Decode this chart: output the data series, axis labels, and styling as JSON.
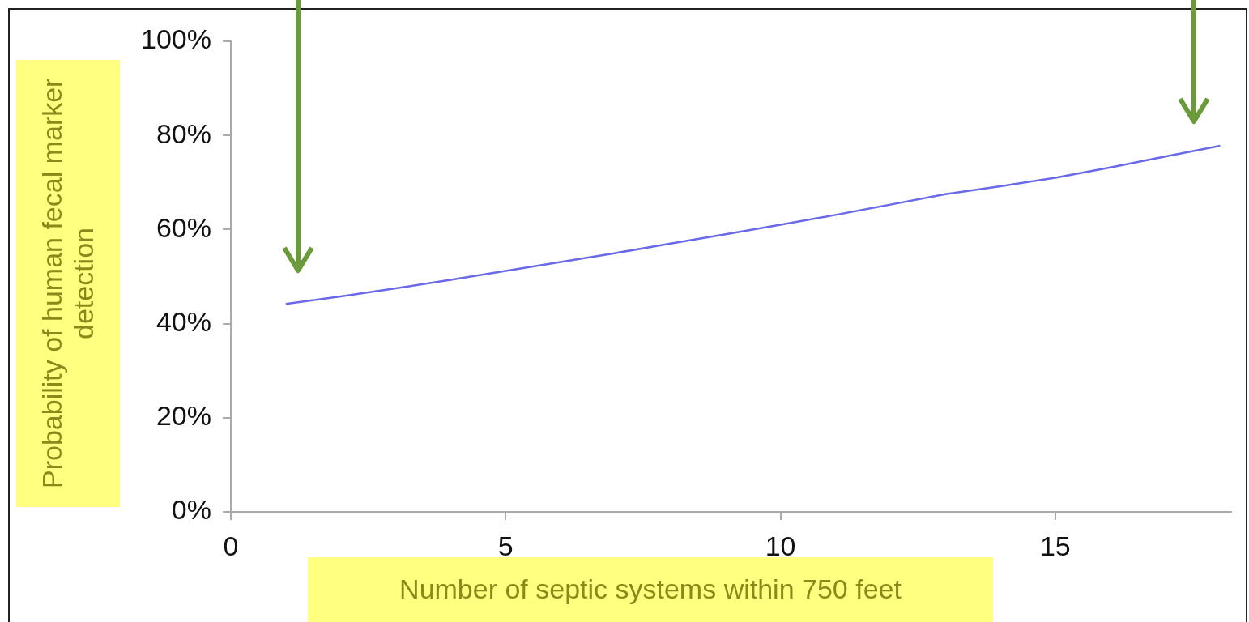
{
  "chart_data": {
    "type": "line",
    "xlabel": "Number of septic systems within 750 feet",
    "ylabel": "Probability of  human fecal marker detection",
    "x": [
      1,
      2,
      3,
      4,
      5,
      6,
      7,
      8,
      9,
      10,
      11,
      12,
      13,
      14,
      15,
      16,
      17,
      18
    ],
    "series": [
      {
        "color": "#6a6ae8",
        "values": [
          44.2,
          45.8,
          47.5,
          49.3,
          51.2,
          53.1,
          55,
          57,
          59,
          61,
          63.1,
          65.3,
          67.5,
          69.2,
          71,
          73.2,
          75.5,
          77.8
        ]
      }
    ],
    "xlim": [
      0,
      18.2
    ],
    "xticks": [
      0,
      5,
      10,
      15
    ],
    "ylim": [
      0,
      100
    ],
    "yticks": [
      {
        "value": 0,
        "label": "0%"
      },
      {
        "value": 20,
        "label": "20%"
      },
      {
        "value": 40,
        "label": "40%"
      },
      {
        "value": 60,
        "label": "60%"
      },
      {
        "value": 80,
        "label": "80%"
      },
      {
        "value": 100,
        "label": "100%"
      }
    ],
    "grid": false,
    "legend": false,
    "marker": "none",
    "line_style": "solid"
  }
}
